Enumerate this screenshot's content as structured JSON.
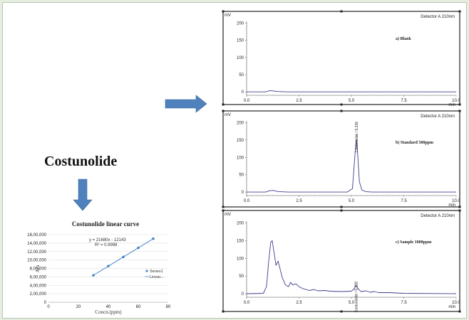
{
  "compound": "Costunolide",
  "colors": {
    "arrow": "#4f81bd",
    "trace": "#3d3d8f",
    "line": "#4a86c8",
    "background": "#e4ede0"
  },
  "chart_data": [
    {
      "type": "scatter",
      "title": "Costunolide linear curve",
      "xlabel": "Concn.(ppm)",
      "ylabel": "Ara",
      "xlim": [
        0,
        80
      ],
      "ylim": [
        0,
        1600000
      ],
      "xticks": [
        "0",
        "20",
        "40",
        "60",
        "80"
      ],
      "yticks": [
        "0",
        "2,00,000",
        "4,00,000",
        "6,00,000",
        "8,00,000",
        "10,00,000",
        "12,00,000",
        "14,00,000",
        "16,00,000"
      ],
      "equation": "y = 21680x - 12143",
      "r2": "R² = 0.9998",
      "legend": [
        "Series1",
        "Linear..."
      ],
      "legend_position": "right",
      "series": [
        {
          "name": "Series1",
          "x": [
            30,
            40,
            50,
            60,
            70
          ],
          "y": [
            638000,
            855000,
            1072000,
            1288000,
            1505000
          ]
        }
      ],
      "grid": true
    },
    {
      "type": "line",
      "annotation": "a) Blank",
      "detector": "Detector A 210nm",
      "y_unit": "mV",
      "x_unit": "min",
      "xlim": [
        0,
        10
      ],
      "ylim": [
        -10,
        205
      ],
      "xticks": [
        "0.0",
        "2.5",
        "5.0",
        "7.5",
        "10.0"
      ],
      "yticks": [
        "0",
        "50",
        "100",
        "150",
        "200"
      ],
      "series": [
        {
          "x": [
            0,
            0.9,
            1.0,
            1.1,
            1.2,
            1.35,
            1.5,
            1.7,
            2.0,
            5.0,
            10.0
          ],
          "y": [
            0,
            0,
            1.5,
            3.5,
            3,
            2,
            1,
            0.5,
            0,
            0,
            0
          ]
        }
      ]
    },
    {
      "type": "line",
      "annotation": "b) Standard 500ppm",
      "detector": "Detector A 210nm",
      "peak_label": "Costunolide / 5.236",
      "y_unit": "mV",
      "x_unit": "min",
      "xlim": [
        0,
        10
      ],
      "ylim": [
        -10,
        205
      ],
      "xticks": [
        "0.0",
        "2.5",
        "5.0",
        "7.5",
        "10.0"
      ],
      "yticks": [
        "0",
        "50",
        "100",
        "150",
        "200"
      ],
      "series": [
        {
          "x": [
            0,
            0.9,
            1.1,
            1.25,
            1.5,
            2.0,
            4.8,
            5.05,
            5.15,
            5.22,
            5.24,
            5.3,
            5.38,
            5.5,
            5.7,
            6.0,
            7.0,
            10.0
          ],
          "y": [
            0,
            0,
            4,
            5,
            1.5,
            0,
            0,
            10,
            90,
            148,
            150,
            110,
            30,
            6,
            1,
            0,
            0,
            0
          ]
        }
      ]
    },
    {
      "type": "line",
      "annotation": "c) Sample 1000ppm",
      "detector": "Detector A 210nm",
      "peak_label": "Costunolide / 5.228",
      "y_unit": "mV",
      "x_unit": "min",
      "xlim": [
        0,
        10
      ],
      "ylim": [
        -10,
        205
      ],
      "xticks": [
        "0.0",
        "2.5",
        "5.0",
        "7.5",
        "10.0"
      ],
      "yticks": [
        "0",
        "50",
        "100",
        "150",
        "200"
      ],
      "series": [
        {
          "x": [
            0,
            0.8,
            0.95,
            1.05,
            1.15,
            1.22,
            1.3,
            1.4,
            1.5,
            1.6,
            1.7,
            1.85,
            2.0,
            2.1,
            2.2,
            2.35,
            2.5,
            2.7,
            3.0,
            3.2,
            3.4,
            3.7,
            4.0,
            4.5,
            5.0,
            5.15,
            5.22,
            5.3,
            5.45,
            5.7,
            5.9,
            6.1,
            6.3,
            6.8,
            7.5,
            10.0
          ],
          "y": [
            0,
            1,
            20,
            90,
            145,
            150,
            120,
            80,
            92,
            70,
            45,
            25,
            20,
            32,
            25,
            28,
            20,
            14,
            9,
            12,
            8,
            9,
            7,
            6,
            7,
            15,
            24,
            16,
            6,
            8,
            4,
            6,
            3,
            3,
            1,
            0
          ]
        }
      ]
    }
  ]
}
